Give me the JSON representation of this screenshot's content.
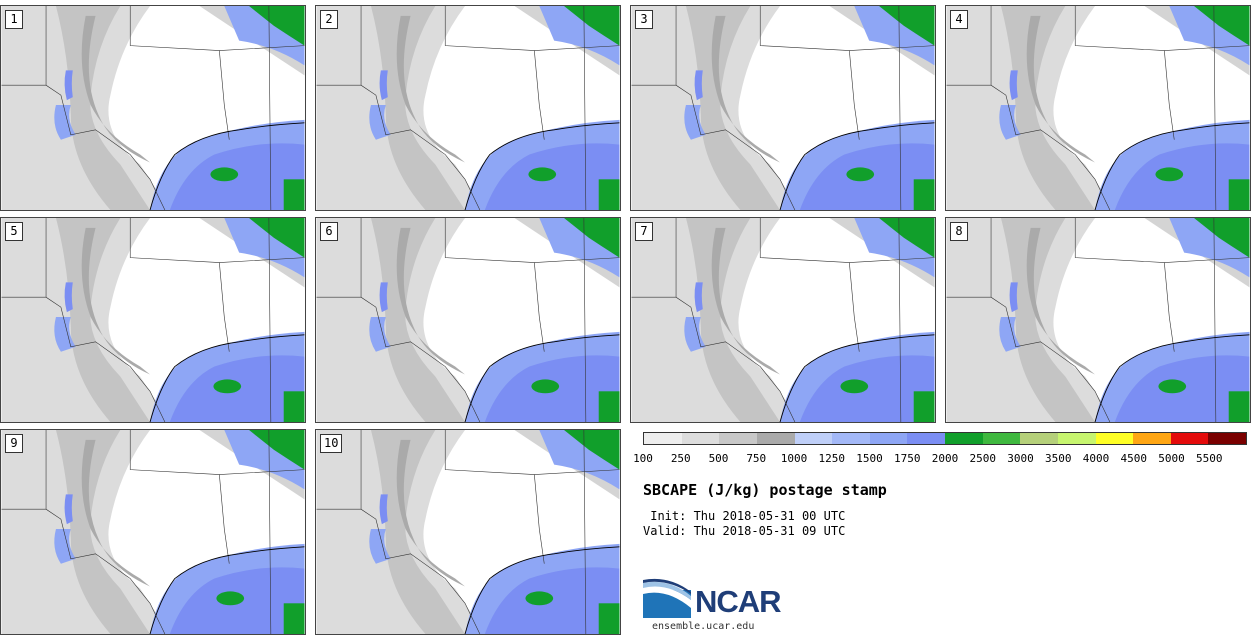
{
  "panels": [
    {
      "label": "1"
    },
    {
      "label": "2"
    },
    {
      "label": "3"
    },
    {
      "label": "4"
    },
    {
      "label": "5"
    },
    {
      "label": "6"
    },
    {
      "label": "7"
    },
    {
      "label": "8"
    },
    {
      "label": "9"
    },
    {
      "label": "10"
    }
  ],
  "colorbar": {
    "colors": [
      "#eeeeee",
      "#dddddd",
      "#c8c8c8",
      "#aaaaaa",
      "#bfcff8",
      "#a3b8f7",
      "#8ea6f5",
      "#7b8ef3",
      "#119f2b",
      "#3fb83f",
      "#b5d07a",
      "#c7f56f",
      "#ffff26",
      "#ffa614",
      "#e40b0b",
      "#7a0000"
    ],
    "labels": [
      "100",
      "250",
      "500",
      "750",
      "1000",
      "1250",
      "1500",
      "1750",
      "2000",
      "2500",
      "3000",
      "3500",
      "4000",
      "4500",
      "5000",
      "5500"
    ]
  },
  "title": "SBCAPE (J/kg) postage stamp",
  "init": " Init: Thu 2018-05-31 00 UTC",
  "valid": "Valid: Thu 2018-05-31 09 UTC",
  "logo": {
    "text": "NCAR",
    "url_text": "ensemble.ucar.edu"
  }
}
